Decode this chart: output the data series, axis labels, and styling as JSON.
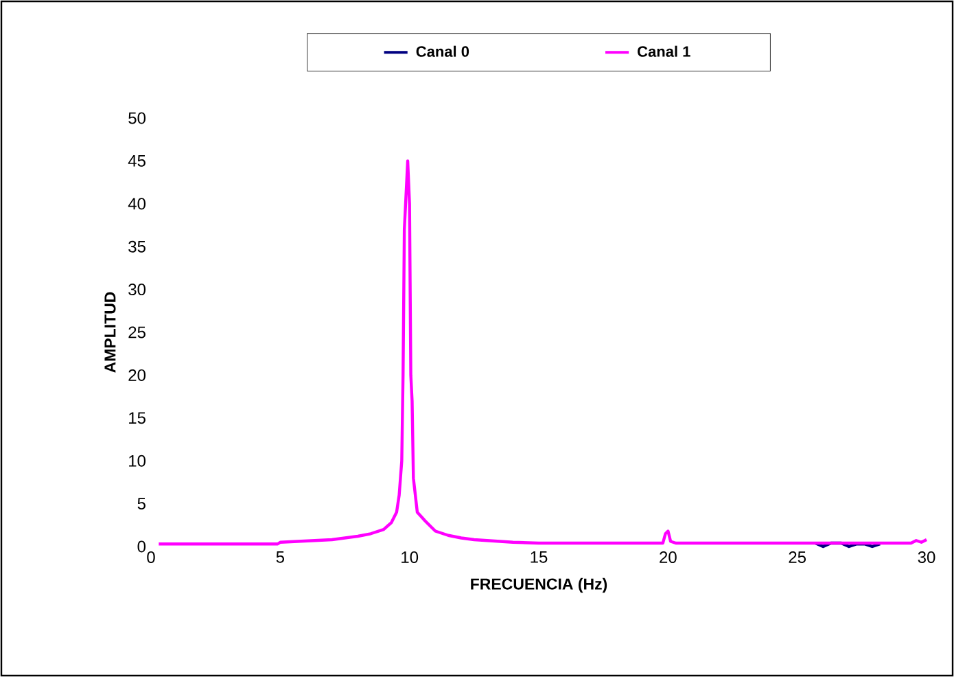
{
  "chart_data": {
    "type": "line",
    "xlabel": "FRECUENCIA (Hz)",
    "ylabel": "AMPLITUD",
    "xlim": [
      0,
      30
    ],
    "xticks": [
      0,
      5,
      10,
      15,
      20,
      25,
      30
    ],
    "ylim": [
      0,
      50
    ],
    "yticks": [
      0,
      5,
      10,
      15,
      20,
      25,
      30,
      35,
      40,
      45,
      50
    ],
    "legend": "top",
    "grid": false,
    "marker": "none",
    "line_style": "solid",
    "series": [
      {
        "name": "Canal 0",
        "color": "#000080",
        "x": [
          25.7,
          26.0,
          26.3,
          26.7,
          27.0,
          27.3,
          27.6,
          27.9,
          28.2
        ],
        "values": [
          0.4,
          0.0,
          0.4,
          0.4,
          0.0,
          0.3,
          0.3,
          0.0,
          0.3
        ]
      },
      {
        "name": "Canal 1",
        "color": "#ff00ff",
        "x": [
          0.3,
          4.9,
          5.0,
          7.0,
          8.0,
          8.5,
          9.0,
          9.3,
          9.5,
          9.6,
          9.7,
          9.75,
          9.8,
          9.93,
          10.0,
          10.05,
          10.1,
          10.15,
          10.3,
          10.6,
          11.0,
          11.5,
          12.0,
          12.5,
          13.0,
          14.0,
          15.0,
          19.8,
          19.9,
          20.0,
          20.1,
          20.3,
          29.4,
          29.6,
          29.8,
          30.0
        ],
        "values": [
          0.3,
          0.3,
          0.5,
          0.8,
          1.2,
          1.5,
          2.0,
          2.8,
          4.0,
          6.0,
          10.0,
          20.0,
          37.0,
          45.0,
          40.0,
          20.0,
          17.0,
          8.0,
          4.0,
          3.0,
          1.8,
          1.3,
          1.0,
          0.8,
          0.7,
          0.5,
          0.4,
          0.4,
          1.5,
          1.8,
          0.6,
          0.4,
          0.4,
          0.7,
          0.5,
          0.8
        ]
      }
    ]
  }
}
